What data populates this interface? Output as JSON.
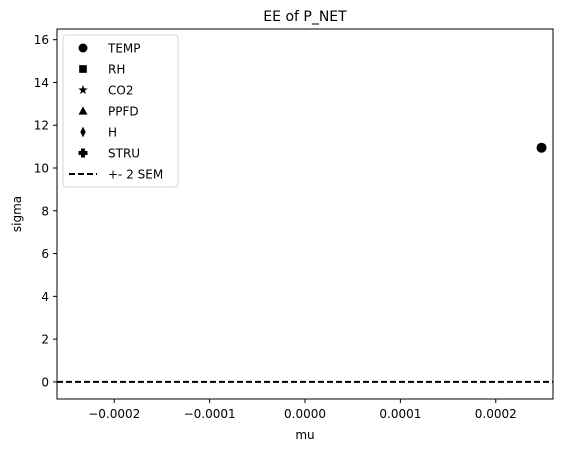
{
  "chart_data": {
    "type": "scatter",
    "title": "EE of P_NET",
    "xlabel": "mu",
    "ylabel": "sigma",
    "xlim": [
      -0.00026,
      0.00026
    ],
    "ylim": [
      -0.8,
      16.5
    ],
    "x_ticks": [
      -0.0002,
      -0.0001,
      0.0,
      0.0001,
      0.0002
    ],
    "x_tick_labels": [
      "−0.0002",
      "−0.0001",
      "0.0000",
      "0.0001",
      "0.0002"
    ],
    "y_ticks": [
      0,
      2,
      4,
      6,
      8,
      10,
      12,
      14,
      16
    ],
    "y_tick_labels": [
      "0",
      "2",
      "4",
      "6",
      "8",
      "10",
      "12",
      "14",
      "16"
    ],
    "grid": false,
    "legend_position": "upper-left",
    "series": [
      {
        "name": "TEMP",
        "marker": "circle",
        "color": "#000000",
        "points": [
          {
            "x": 0.000248,
            "y": 10.95
          }
        ]
      },
      {
        "name": "RH",
        "marker": "square",
        "color": "#000000",
        "points": []
      },
      {
        "name": "CO2",
        "marker": "star",
        "color": "#000000",
        "points": []
      },
      {
        "name": "PPFD",
        "marker": "triangle",
        "color": "#000000",
        "points": []
      },
      {
        "name": "H",
        "marker": "thin-diamond",
        "color": "#000000",
        "points": []
      },
      {
        "name": "STRU",
        "marker": "plus",
        "color": "#000000",
        "points": []
      }
    ],
    "reference_line": {
      "name": "+- 2 SEM",
      "style": "dashed",
      "color": "#000000",
      "y": 0.0
    }
  }
}
